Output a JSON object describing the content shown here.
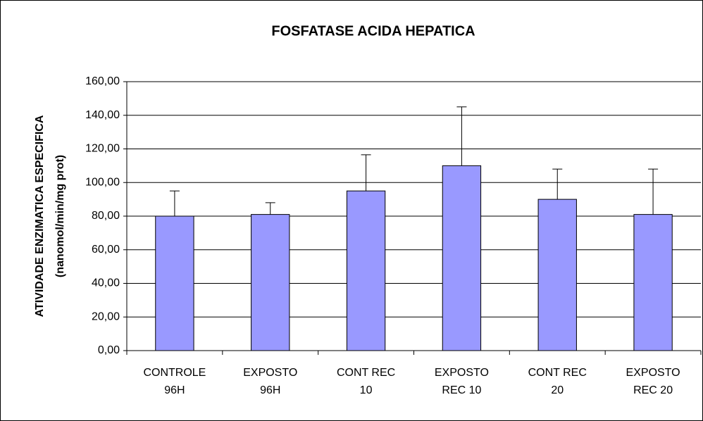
{
  "chart_data": {
    "type": "bar",
    "title": "FOSFATASE ACIDA HEPATICA",
    "y_label": [
      "ATIVIDADE ENZIMATICA ESPECIFICA",
      "(nanomol/min/mg prot)"
    ],
    "categories": [
      [
        "CONTROLE",
        "96H"
      ],
      [
        "EXPOSTO",
        "96H"
      ],
      [
        "CONT REC",
        "10"
      ],
      [
        "EXPOSTO",
        "REC 10"
      ],
      [
        "CONT REC",
        "20"
      ],
      [
        "EXPOSTO",
        "REC 20"
      ]
    ],
    "values": [
      80,
      81,
      95,
      110,
      90,
      81
    ],
    "errors": [
      15,
      7,
      21.5,
      35,
      18,
      27
    ],
    "color": "#9999ff",
    "ylim": [
      0,
      160
    ],
    "yticks": [
      {
        "value": 0,
        "label": "0,00"
      },
      {
        "value": 20,
        "label": "20,00"
      },
      {
        "value": 40,
        "label": "40,00"
      },
      {
        "value": 60,
        "label": "60,00"
      },
      {
        "value": 80,
        "label": "80,00"
      },
      {
        "value": 100,
        "label": "100,00"
      },
      {
        "value": 120,
        "label": "120,00"
      },
      {
        "value": 140,
        "label": "140,00"
      },
      {
        "value": 160,
        "label": "160,00"
      }
    ],
    "grid": true
  }
}
